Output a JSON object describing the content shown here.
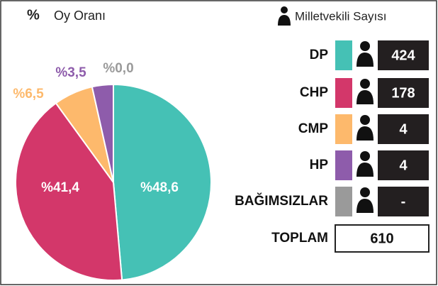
{
  "chart_data": {
    "type": "pie",
    "title_symbol": "%",
    "title": "Oy Oranı",
    "categories": [
      "DP",
      "CHP",
      "CMP",
      "HP",
      "BAĞIMSIZLAR"
    ],
    "values": [
      48.6,
      41.4,
      6.5,
      3.5,
      0.0
    ],
    "value_labels": [
      "%48,6",
      "%41,4",
      "%6,5",
      "%3,5",
      "%0,0"
    ],
    "colors": [
      "#45c1b5",
      "#d3376a",
      "#fdb96c",
      "#8e5cab",
      "#9a9a9a"
    ]
  },
  "seats": {
    "title": "Milletvekili Sayısı",
    "values": [
      424,
      178,
      4,
      4,
      "-"
    ],
    "total_label": "TOPLAM",
    "total": 610
  }
}
